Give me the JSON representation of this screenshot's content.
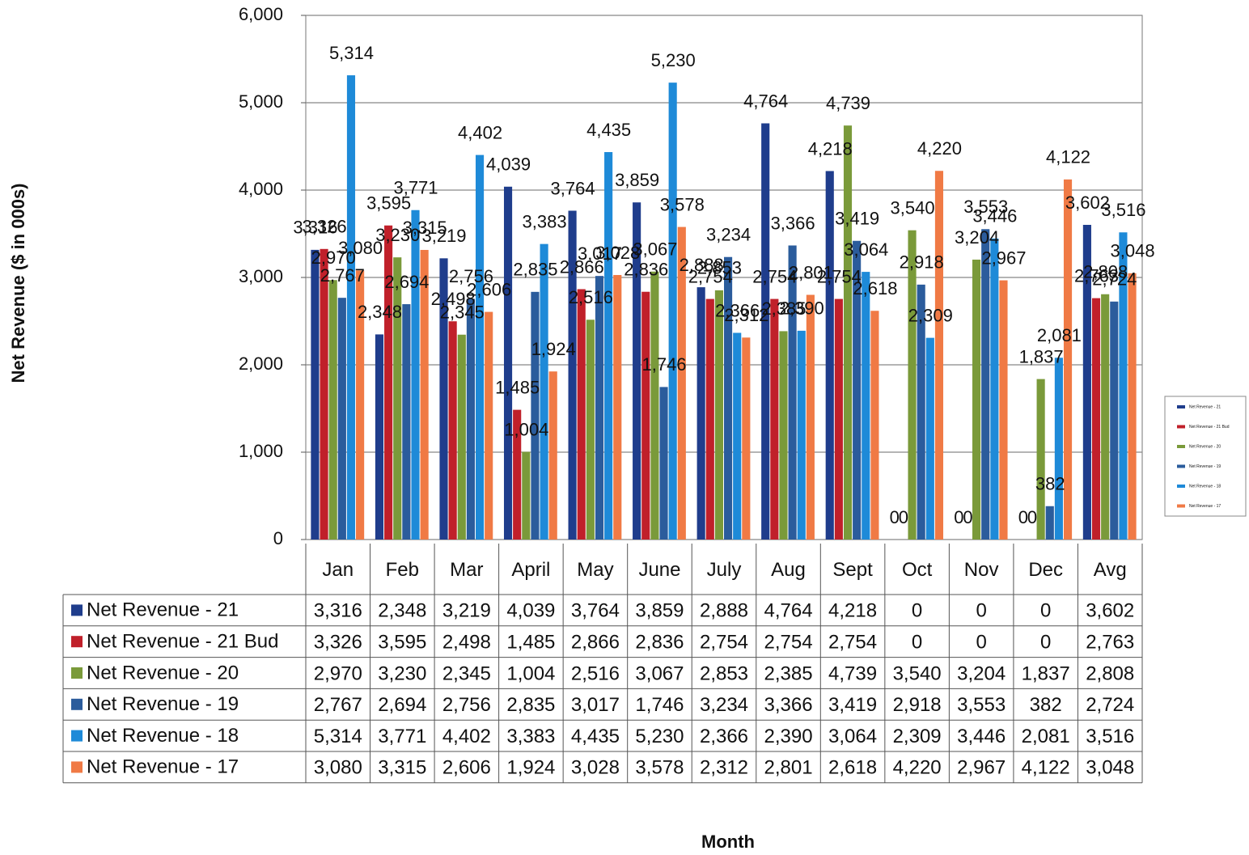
{
  "chart_data": {
    "type": "bar",
    "y_label": "Net Revenue ($ in 000s)",
    "x_label": "Month",
    "categories": [
      "Jan",
      "Feb",
      "Mar",
      "April",
      "May",
      "June",
      "July",
      "Aug",
      "Sept",
      "Oct",
      "Nov",
      "Dec",
      "Avg"
    ],
    "ylim": [
      0,
      6000
    ],
    "yticks": [
      0,
      {
        "value": 1000,
        "label": "1,000"
      },
      {
        "value": 2000,
        "label": "2,000"
      },
      {
        "value": 3000,
        "label": "3,000"
      },
      {
        "value": 4000,
        "label": "4,000"
      },
      {
        "value": 5000,
        "label": "5,000"
      },
      {
        "value": 6000,
        "label": "6,000"
      }
    ],
    "grid": true,
    "legend": "right",
    "series": [
      {
        "name": "Net Revenue - 21",
        "color": "#1f3d8c",
        "values": [
          3316,
          2348,
          3219,
          4039,
          3764,
          3859,
          2888,
          4764,
          4218,
          0,
          0,
          0,
          3602
        ],
        "value_labels": [
          "3,316",
          "2,348",
          "3,219",
          "4,039",
          "3,764",
          "3,859",
          "2,888",
          "4,764",
          "4,218",
          "0",
          "0",
          "0",
          "3,602"
        ]
      },
      {
        "name": "Net Revenue - 21 Bud",
        "color": "#c0202a",
        "values": [
          3326,
          3595,
          2498,
          1485,
          2866,
          2836,
          2754,
          2754,
          2754,
          0,
          0,
          0,
          2763
        ],
        "value_labels": [
          "3,326",
          "3,595",
          "2,498",
          "1,485",
          "2,866",
          "2,836",
          "2,754",
          "2,754",
          "2,754",
          "0",
          "0",
          "0",
          "2,763"
        ]
      },
      {
        "name": "Net Revenue - 20",
        "color": "#7a9a3a",
        "values": [
          2970,
          3230,
          2345,
          1004,
          2516,
          3067,
          2853,
          2385,
          4739,
          3540,
          3204,
          1837,
          2808
        ],
        "value_labels": [
          "2,970",
          "3,230",
          "2,345",
          "1,004",
          "2,516",
          "3,067",
          "2,853",
          "2,385",
          "4,739",
          "3,540",
          "3,204",
          "1,837",
          "2,808"
        ]
      },
      {
        "name": "Net Revenue - 19",
        "color": "#2b5c9c",
        "values": [
          2767,
          2694,
          2756,
          2835,
          3017,
          1746,
          3234,
          3366,
          3419,
          2918,
          3553,
          382,
          2724
        ],
        "value_labels": [
          "2,767",
          "2,694",
          "2,756",
          "2,835",
          "3,017",
          "1,746",
          "3,234",
          "3,366",
          "3,419",
          "2,918",
          "3,553",
          "382",
          "2,724"
        ]
      },
      {
        "name": "Net Revenue - 18",
        "color": "#1e8ad8",
        "values": [
          5314,
          3771,
          4402,
          3383,
          4435,
          5230,
          2366,
          2390,
          3064,
          2309,
          3446,
          2081,
          3516
        ],
        "value_labels": [
          "5,314",
          "3,771",
          "4,402",
          "3,383",
          "4,435",
          "5,230",
          "2,366",
          "2,390",
          "3,064",
          "2,309",
          "3,446",
          "2,081",
          "3,516"
        ]
      },
      {
        "name": "Net Revenue - 17",
        "color": "#f07a45",
        "values": [
          3080,
          3315,
          2606,
          1924,
          3028,
          3578,
          2312,
          2801,
          2618,
          4220,
          2967,
          4122,
          3048
        ],
        "value_labels": [
          "3,080",
          "3,315",
          "2,606",
          "1,924",
          "3,028",
          "3,578",
          "2,312",
          "2,801",
          "2,618",
          "4,220",
          "2,967",
          "4,122",
          "3,048"
        ]
      }
    ]
  }
}
